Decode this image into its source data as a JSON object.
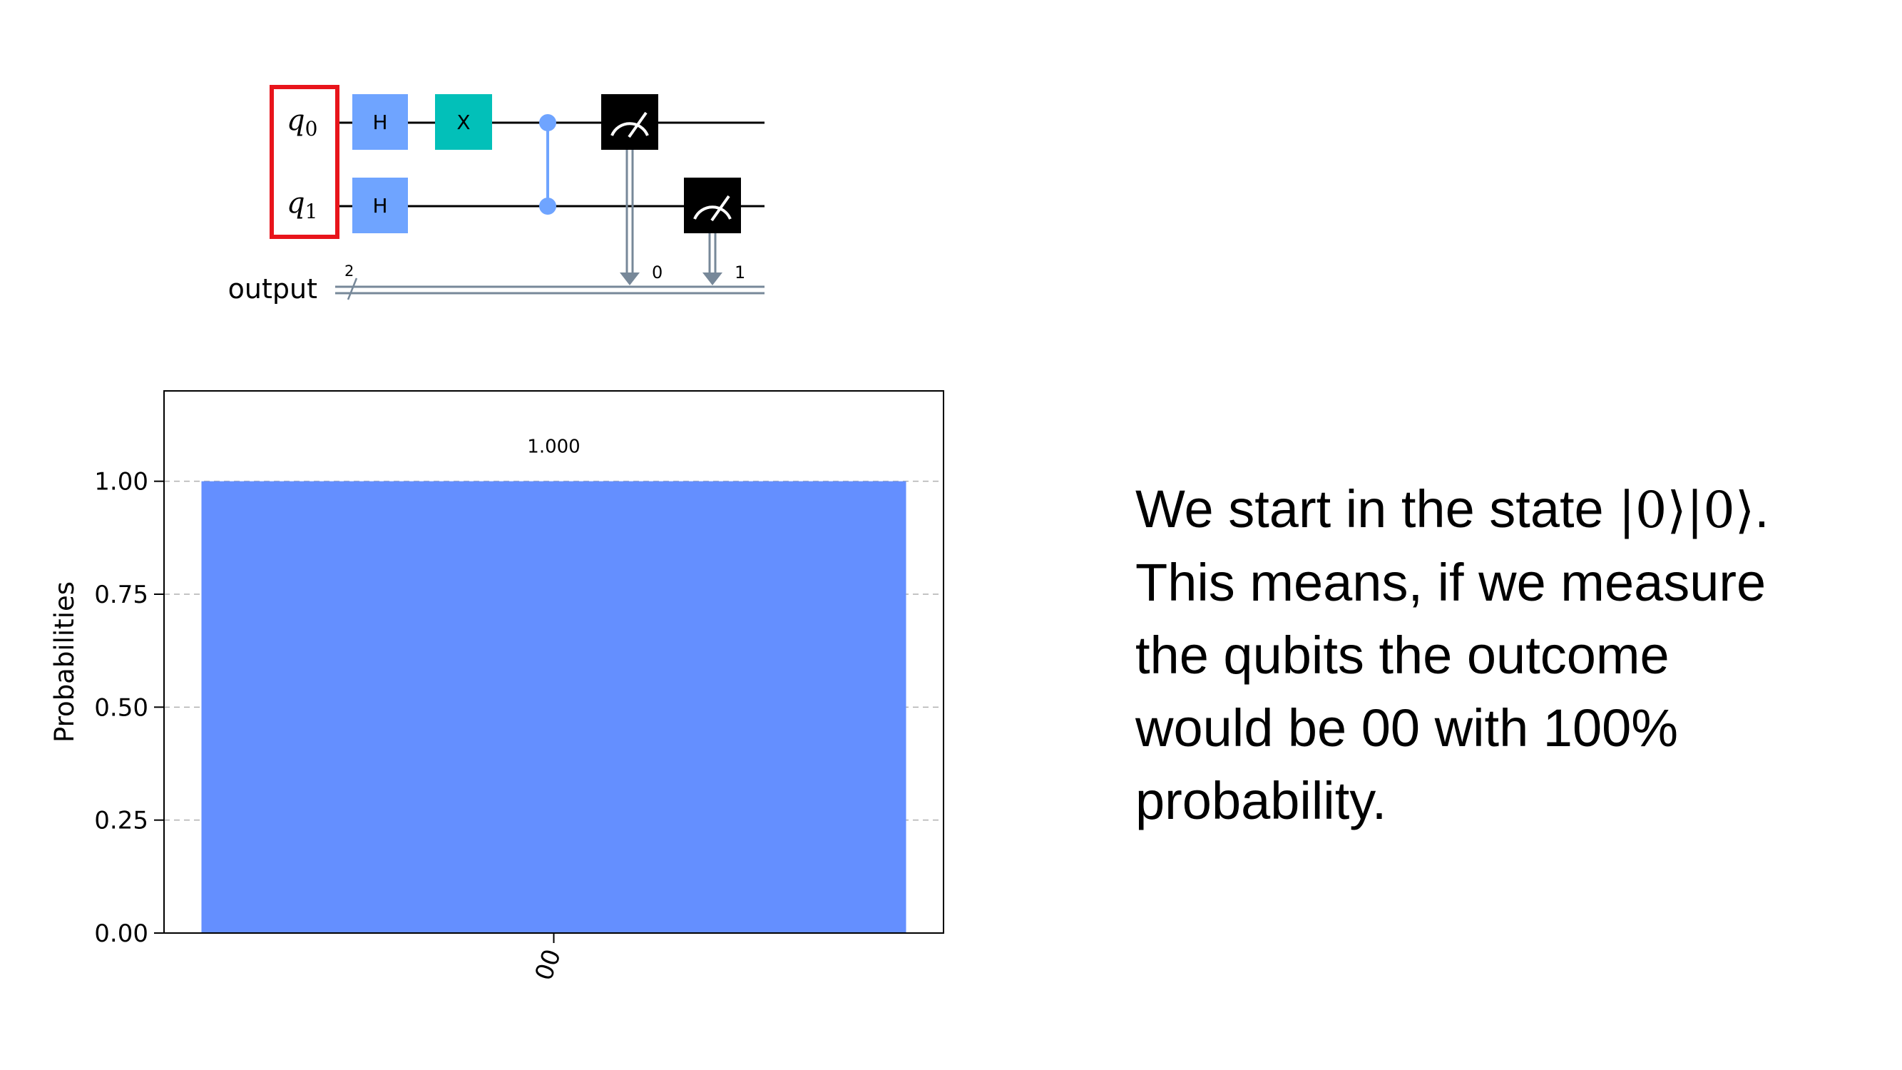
{
  "circuit": {
    "qubits": [
      {
        "name": "q",
        "index": "0"
      },
      {
        "name": "q",
        "index": "1"
      }
    ],
    "classical_register": {
      "label": "output",
      "size": "2"
    },
    "gates": [
      {
        "label": "H",
        "qubit": 0,
        "column": 0,
        "color": "#6fa4ff"
      },
      {
        "label": "H",
        "qubit": 1,
        "column": 0,
        "color": "#6fa4ff"
      },
      {
        "label": "X",
        "qubit": 0,
        "column": 1,
        "color": "#02c0b9"
      }
    ],
    "cz": {
      "control": 0,
      "target": 1,
      "color": "#6fa4ff"
    },
    "measures": [
      {
        "qubit": 0,
        "bit": "0"
      },
      {
        "qubit": 1,
        "bit": "1"
      }
    ],
    "highlight_color": "#e8141b"
  },
  "chart_data": {
    "type": "bar",
    "categories": [
      "00"
    ],
    "values": [
      1.0
    ],
    "value_labels": [
      "1.000"
    ],
    "ylabel": "Probabilities",
    "ylim": [
      0,
      1.2
    ],
    "yticks": [
      0.0,
      0.25,
      0.5,
      0.75,
      1.0
    ],
    "ytick_labels": [
      "0.00",
      "0.25",
      "0.50",
      "0.75",
      "1.00"
    ],
    "xtick_rotation": 70,
    "grid": "dashed horizontal",
    "bar_color": "#648fff"
  },
  "text": {
    "line1_prefix": "We start in the state ",
    "ket_a": "|0⟩",
    "ket_b": "|0⟩",
    "line1_suffix": ".",
    "line2": "This means, if we measure",
    "line3": "the qubits the outcome",
    "line4": "would be 00 with 100%",
    "line5": "probability."
  }
}
